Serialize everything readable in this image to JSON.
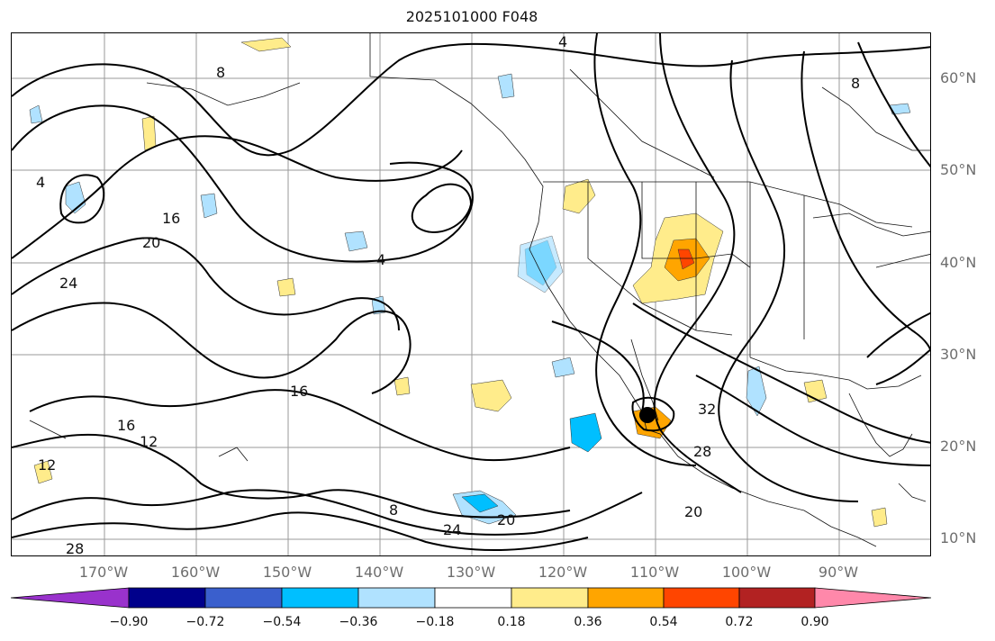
{
  "title": "2025101000 F048",
  "lat_labels": [
    "60°N",
    "50°N",
    "40°N",
    "30°N",
    "20°N",
    "10°N"
  ],
  "lon_labels": [
    "170°W",
    "160°W",
    "150°W",
    "140°W",
    "130°W",
    "120°W",
    "110°W",
    "100°W",
    "90°W"
  ],
  "colorbar": {
    "ticks": [
      "−0.90",
      "−0.72",
      "−0.54",
      "−0.36",
      "−0.18",
      "0.18",
      "0.36",
      "0.54",
      "0.72",
      "0.90"
    ],
    "colors": [
      "#9932cc",
      "#00008b",
      "#3a5fcd",
      "#00bfff",
      "#b0e2ff",
      "#ffffff",
      "#ffec8b",
      "#ffa500",
      "#ff4500",
      "#b22222",
      "#ff88aa"
    ]
  },
  "contour_labels": [
    "4",
    "8",
    "12",
    "16",
    "20",
    "24",
    "28",
    "32"
  ],
  "marker": "hurricane-position-dot"
}
